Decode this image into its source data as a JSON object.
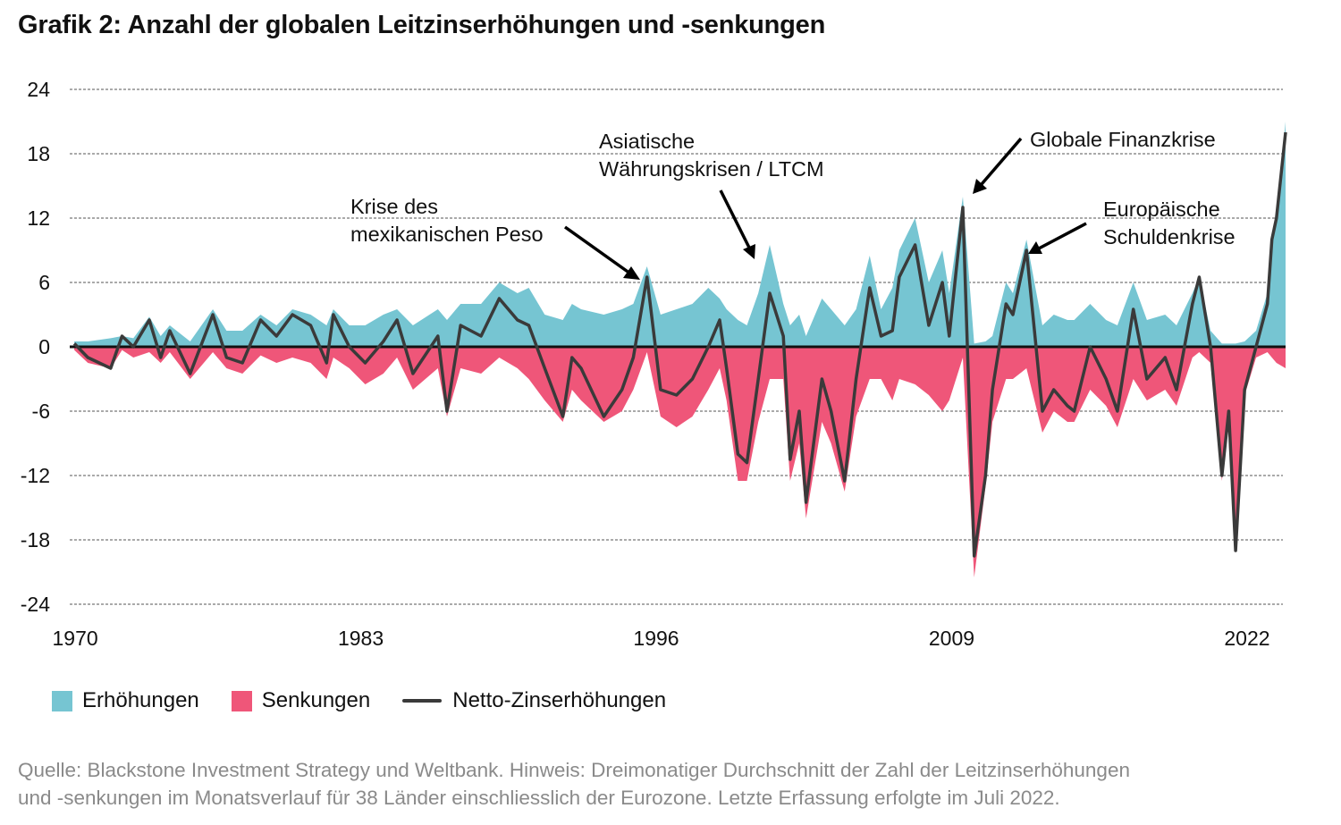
{
  "title": "Grafik 2: Anzahl der globalen Leitzinserhöhungen und -senkungen",
  "colors": {
    "hikes": "#76C5D2",
    "cuts": "#EF5679",
    "net": "#3a3a3a"
  },
  "legend": {
    "hikes": "Erhöhungen",
    "cuts": "Senkungen",
    "net": "Netto-Zinserhöhungen"
  },
  "annotations": {
    "peso": [
      "Krise des",
      "mexikanischen Peso"
    ],
    "asia": [
      "Asiatische",
      "Währungskrisen / LTCM"
    ],
    "gfc": [
      "Globale Finanzkrise"
    ],
    "euro": [
      "Europäische",
      "Schuldenkrise"
    ]
  },
  "source": [
    "Quelle: Blackstone Investment Strategy und Weltbank. Hinweis: Dreimonatiger Durchschnitt der Zahl der Leitzinserhöhungen",
    "und -senkungen im Monatsverlauf für 38 Länder einschliesslich der Eurozone. Letzte Erfassung erfolgte im Juli 2022."
  ],
  "chart_data": {
    "type": "area",
    "title": "Grafik 2: Anzahl der globalen Leitzinserhöhungen und -senkungen",
    "xlabel": "",
    "ylabel": "",
    "xlim": [
      1969.8,
      2023.3
    ],
    "ylim": [
      -24,
      24
    ],
    "yticks": [
      24,
      18,
      12,
      6,
      0,
      -6,
      -12,
      -18,
      -24
    ],
    "ytick_labels": [
      "24",
      "18",
      "12",
      "6",
      "0",
      "-6",
      "-12",
      "-18",
      "-24"
    ],
    "xticks": [
      1970,
      1983,
      1996,
      2009,
      2022
    ],
    "xtick_labels": [
      "1970",
      "1983",
      "1996",
      "2009",
      "2022"
    ],
    "grid": "horizontal dashed",
    "legend_position": "bottom-left",
    "x": [
      1970.0,
      1970.6,
      1971.6,
      1972.1,
      1972.6,
      1973.3,
      1973.8,
      1974.2,
      1975.1,
      1976.1,
      1976.7,
      1977.4,
      1978.2,
      1978.9,
      1979.6,
      1980.4,
      1981.1,
      1981.4,
      1982.1,
      1982.8,
      1983.6,
      1984.2,
      1984.9,
      1986.0,
      1986.4,
      1987.0,
      1987.9,
      1988.7,
      1989.5,
      1990.0,
      1990.7,
      1991.5,
      1991.9,
      1992.3,
      1993.3,
      1994.1,
      1994.6,
      1995.2,
      1995.8,
      1996.5,
      1997.2,
      1997.9,
      1998.4,
      1998.7,
      1999.2,
      1999.6,
      2000.1,
      2000.6,
      2001.2,
      2001.5,
      2001.9,
      2002.2,
      2002.9,
      2003.3,
      2003.9,
      2004.4,
      2005.0,
      2005.5,
      2006.0,
      2006.3,
      2007.0,
      2007.6,
      2008.2,
      2008.5,
      2009.1,
      2009.6,
      2010.1,
      2010.4,
      2011.0,
      2011.3,
      2011.9,
      2012.6,
      2013.1,
      2013.7,
      2014.0,
      2014.7,
      2015.4,
      2015.9,
      2016.6,
      2017.2,
      2018.0,
      2018.5,
      2019.2,
      2019.5,
      2020.0,
      2020.5,
      2020.8,
      2021.1,
      2021.5,
      2022.0,
      2022.5,
      2022.7,
      2022.9,
      2023.3
    ],
    "series": [
      {
        "name": "Erhöhungen",
        "values": [
          0.5,
          0.5,
          0.8,
          1,
          0.8,
          2.8,
          1,
          2,
          0.5,
          3.5,
          1.5,
          1.5,
          3,
          2,
          3.5,
          3,
          2,
          3.5,
          2,
          2,
          3,
          3.5,
          2,
          3.5,
          2.5,
          4,
          4,
          6,
          5,
          5.5,
          3,
          2.5,
          4,
          3.5,
          3,
          3.5,
          4,
          7.5,
          3,
          3.5,
          4,
          5.5,
          4.5,
          3.5,
          2.5,
          2,
          5,
          9.5,
          4,
          2,
          3,
          1,
          4.5,
          3.5,
          2,
          3.5,
          8.5,
          3.5,
          5.5,
          9,
          12,
          6,
          9,
          5,
          14,
          0.3,
          0.5,
          1,
          6,
          5,
          10,
          2,
          3,
          2.5,
          2.5,
          4,
          2.5,
          2,
          6,
          2.5,
          3,
          2,
          5,
          6.5,
          1.5,
          0.3,
          0.3,
          0.3,
          0.5,
          1.5,
          5,
          10,
          12,
          21
        ]
      },
      {
        "name": "Senkungen",
        "values": [
          -0.3,
          -1.5,
          -2,
          -0.3,
          -1,
          -0.5,
          -1.5,
          -0.5,
          -3,
          -0.5,
          -2,
          -2.5,
          -0.8,
          -1.5,
          -1,
          -1.5,
          -3,
          -1,
          -2,
          -3.5,
          -2.5,
          -1,
          -4,
          -2,
          -6.5,
          -2,
          -2.5,
          -1,
          -2,
          -3,
          -5,
          -7,
          -4,
          -5,
          -7,
          -6,
          -4,
          -0.5,
          -6.5,
          -7.5,
          -6.5,
          -4,
          -2,
          -5,
          -12.5,
          -12.5,
          -7,
          -3,
          -3,
          -12.5,
          -9,
          -16,
          -7,
          -9,
          -13.5,
          -6.5,
          -3,
          -3,
          -5,
          -3,
          -3.5,
          -4.5,
          -6,
          -5,
          -1,
          -21.5,
          -13,
          -7,
          -3,
          -3,
          -2,
          -8,
          -6,
          -7,
          -7,
          -4,
          -5.5,
          -7.5,
          -3,
          -5,
          -4,
          -5.5,
          -1,
          -0.5,
          -1.5,
          -12.5,
          -6.5,
          -19,
          -4.5,
          -1,
          -0.5,
          -1,
          -1.5,
          -2
        ]
      },
      {
        "name": "Netto-Zinserhöhungen",
        "values": [
          0.3,
          -1,
          -2,
          1,
          0,
          2.5,
          -1,
          1.5,
          -2.5,
          3,
          -1,
          -1.5,
          2.5,
          1,
          3,
          2,
          -1.5,
          3,
          0,
          -1.5,
          0.5,
          2.5,
          -2.5,
          1,
          -6,
          2,
          1,
          4.5,
          2.5,
          2,
          -2,
          -6.5,
          -1,
          -2,
          -6.5,
          -4,
          -1,
          6.5,
          -4,
          -4.5,
          -3,
          0,
          2.5,
          -2,
          -10,
          -10.8,
          -3,
          5,
          1,
          -10.5,
          -6,
          -14.5,
          -3,
          -6,
          -12.5,
          -3,
          5.5,
          1,
          1.5,
          6.5,
          9.5,
          2,
          6,
          1,
          13,
          -19.5,
          -12,
          -4,
          4,
          3,
          9,
          -6,
          -4,
          -5.5,
          -6,
          0,
          -3,
          -6,
          3.5,
          -3,
          -1,
          -4,
          4,
          6.5,
          0,
          -12,
          -6,
          -19,
          -4,
          0,
          4,
          10,
          12,
          20
        ]
      }
    ]
  }
}
